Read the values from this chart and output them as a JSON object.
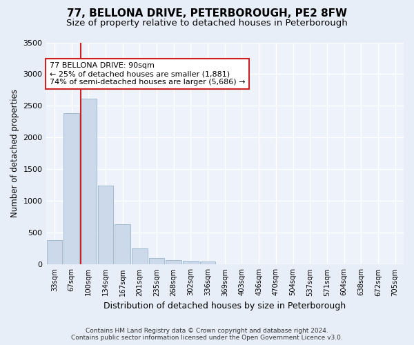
{
  "title": "77, BELLONA DRIVE, PETERBOROUGH, PE2 8FW",
  "subtitle": "Size of property relative to detached houses in Peterborough",
  "xlabel": "Distribution of detached houses by size in Peterborough",
  "ylabel": "Number of detached properties",
  "footer_line1": "Contains HM Land Registry data © Crown copyright and database right 2024.",
  "footer_line2": "Contains public sector information licensed under the Open Government Licence v3.0.",
  "categories": [
    "33sqm",
    "67sqm",
    "100sqm",
    "134sqm",
    "167sqm",
    "201sqm",
    "235sqm",
    "268sqm",
    "302sqm",
    "336sqm",
    "369sqm",
    "403sqm",
    "436sqm",
    "470sqm",
    "504sqm",
    "537sqm",
    "571sqm",
    "604sqm",
    "638sqm",
    "672sqm",
    "705sqm"
  ],
  "values": [
    390,
    2390,
    2610,
    1240,
    640,
    250,
    105,
    65,
    60,
    50,
    0,
    0,
    0,
    0,
    0,
    0,
    0,
    0,
    0,
    0,
    0
  ],
  "bar_color": "#ccd9ea",
  "bar_edge_color": "#9ab4cc",
  "vline_color": "#cc2222",
  "annotation_text": "77 BELLONA DRIVE: 90sqm\n← 25% of detached houses are smaller (1,881)\n74% of semi-detached houses are larger (5,686) →",
  "annotation_box_color": "white",
  "annotation_box_edge": "#cc2222",
  "ylim": [
    0,
    3500
  ],
  "yticks": [
    0,
    500,
    1000,
    1500,
    2000,
    2500,
    3000,
    3500
  ],
  "bg_color": "#e8eef8",
  "plot_bg_color": "#eef3fb",
  "title_fontsize": 11,
  "subtitle_fontsize": 9.5,
  "xlabel_fontsize": 9,
  "ylabel_fontsize": 8.5
}
